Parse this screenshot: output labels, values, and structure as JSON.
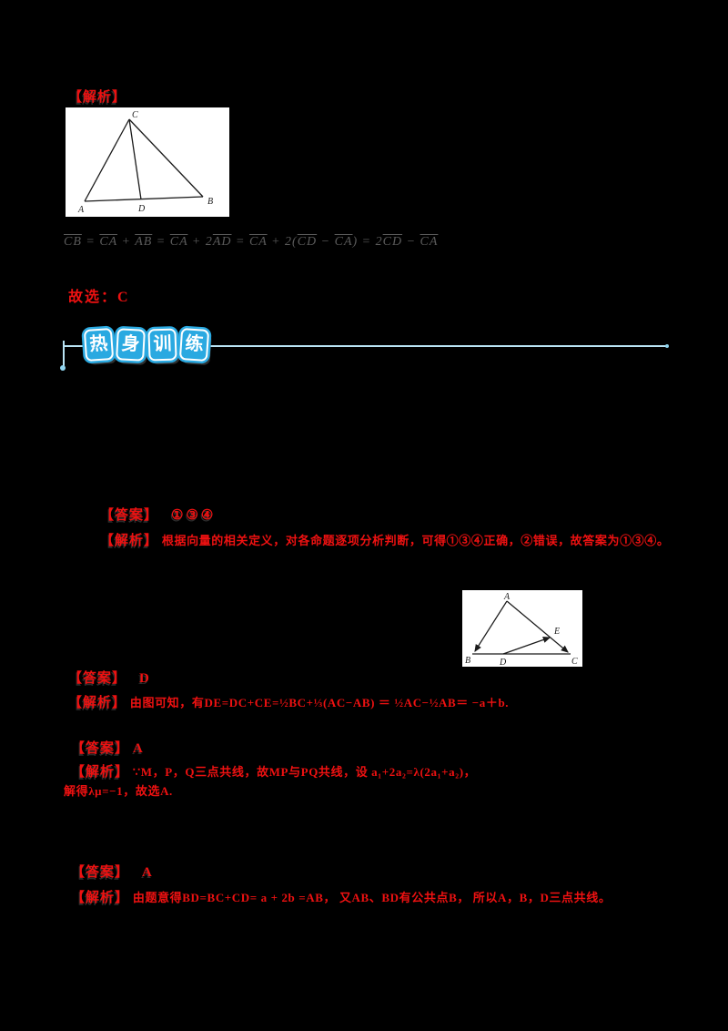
{
  "colors": {
    "background": "#000000",
    "accent_red": "#ee1111",
    "banner_blue": "#2aa9e1",
    "banner_line_blue": "#b9e3f4",
    "formula_gray": "#5a5a5a"
  },
  "top_section": {
    "analysis_label": "【解析】",
    "figure1_labels": {
      "A": "A",
      "B": "B",
      "C": "C",
      "D": "D"
    },
    "formula_segments": [
      {
        "t": "CB",
        "v": true
      },
      {
        "t": " = ",
        "v": false
      },
      {
        "t": "CA",
        "v": true
      },
      {
        "t": " + ",
        "v": false
      },
      {
        "t": "AB",
        "v": true
      },
      {
        "t": " = ",
        "v": false
      },
      {
        "t": "CA",
        "v": true
      },
      {
        "t": " + 2",
        "v": false
      },
      {
        "t": "AD",
        "v": true
      },
      {
        "t": " = ",
        "v": false
      },
      {
        "t": "CA",
        "v": true
      },
      {
        "t": " + 2(",
        "v": false
      },
      {
        "t": "CD",
        "v": true
      },
      {
        "t": " − ",
        "v": false
      },
      {
        "t": "CA",
        "v": true
      },
      {
        "t": ") = 2",
        "v": false
      },
      {
        "t": "CD",
        "v": true
      },
      {
        "t": " − ",
        "v": false
      },
      {
        "t": "CA",
        "v": true
      }
    ],
    "choice": "故选：C"
  },
  "banner": {
    "tiles": [
      "热",
      "身",
      "训",
      "练"
    ]
  },
  "figure2_labels": {
    "A": "A",
    "B": "B",
    "C": "C",
    "D": "D",
    "E": "E"
  },
  "problems": [
    {
      "answer_label": "【答案】",
      "answer": "①③④",
      "analysis_label": "【解析】",
      "analysis": [
        "根据向量的相关定义，对各命题逐项分析判断，可得①③④正确，②错误，故答案为①③④。"
      ]
    },
    {
      "answer_label": "【答案】",
      "answer": "D",
      "analysis_label": "【解析】",
      "analysis": [
        "由图可知，有DE=DC+CE=½BC+⅓(AC−AB) ＝ ½AC−½AB＝ −a＋b."
      ]
    },
    {
      "answer_label": "【答案】",
      "answer": "A",
      "analysis_label": "【解析】",
      "analysis": [
        "∵M，P，Q三点共线，故MP与PQ共线，设 a₁+2a₂=λ(2a₁+a₂)，",
        "解得λμ=−1，故选A."
      ]
    },
    {
      "answer_label": "【答案】",
      "answer": "A",
      "analysis_label": "【解析】",
      "analysis": [
        "由题意得BD=BC+CD= a + 2b =AB， 又AB、BD有公共点B， 所以A，B，D三点共线。"
      ]
    }
  ]
}
